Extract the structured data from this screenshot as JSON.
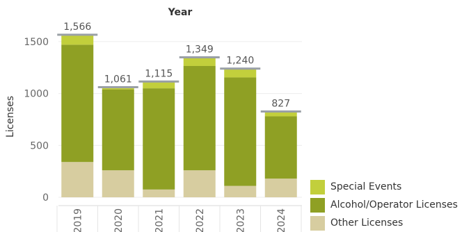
{
  "chart_data": {
    "type": "bar",
    "stacked": true,
    "title": "Year",
    "ylabel": "Licenses",
    "xlabel": "",
    "categories": [
      "2019",
      "2020",
      "2021",
      "2022",
      "2023",
      "2024"
    ],
    "ylim": [
      -60,
      1700
    ],
    "yticks": [
      0,
      500,
      1000,
      1500
    ],
    "ytick_labels": [
      "0",
      "500",
      "1000",
      "1500"
    ],
    "grid": true,
    "legend_position": "bottom-right",
    "series": [
      {
        "name": "Other Licenses",
        "color": "#d7cda0",
        "values": [
          340,
          260,
          75,
          260,
          110,
          180
        ]
      },
      {
        "name": "Alcohol/Operator Licenses",
        "color": "#8fa024",
        "values": [
          1130,
          780,
          975,
          1005,
          1045,
          600
        ]
      },
      {
        "name": "Special Events",
        "color": "#c2cf3c",
        "values": [
          96,
          21,
          65,
          84,
          85,
          47
        ]
      }
    ],
    "totals": [
      1566,
      1061,
      1115,
      1349,
      1240,
      827
    ],
    "total_labels": [
      "1,566",
      "1,061",
      "1,115",
      "1,349",
      "1,240",
      "827"
    ],
    "total_line_color": "#9aa0a6"
  }
}
